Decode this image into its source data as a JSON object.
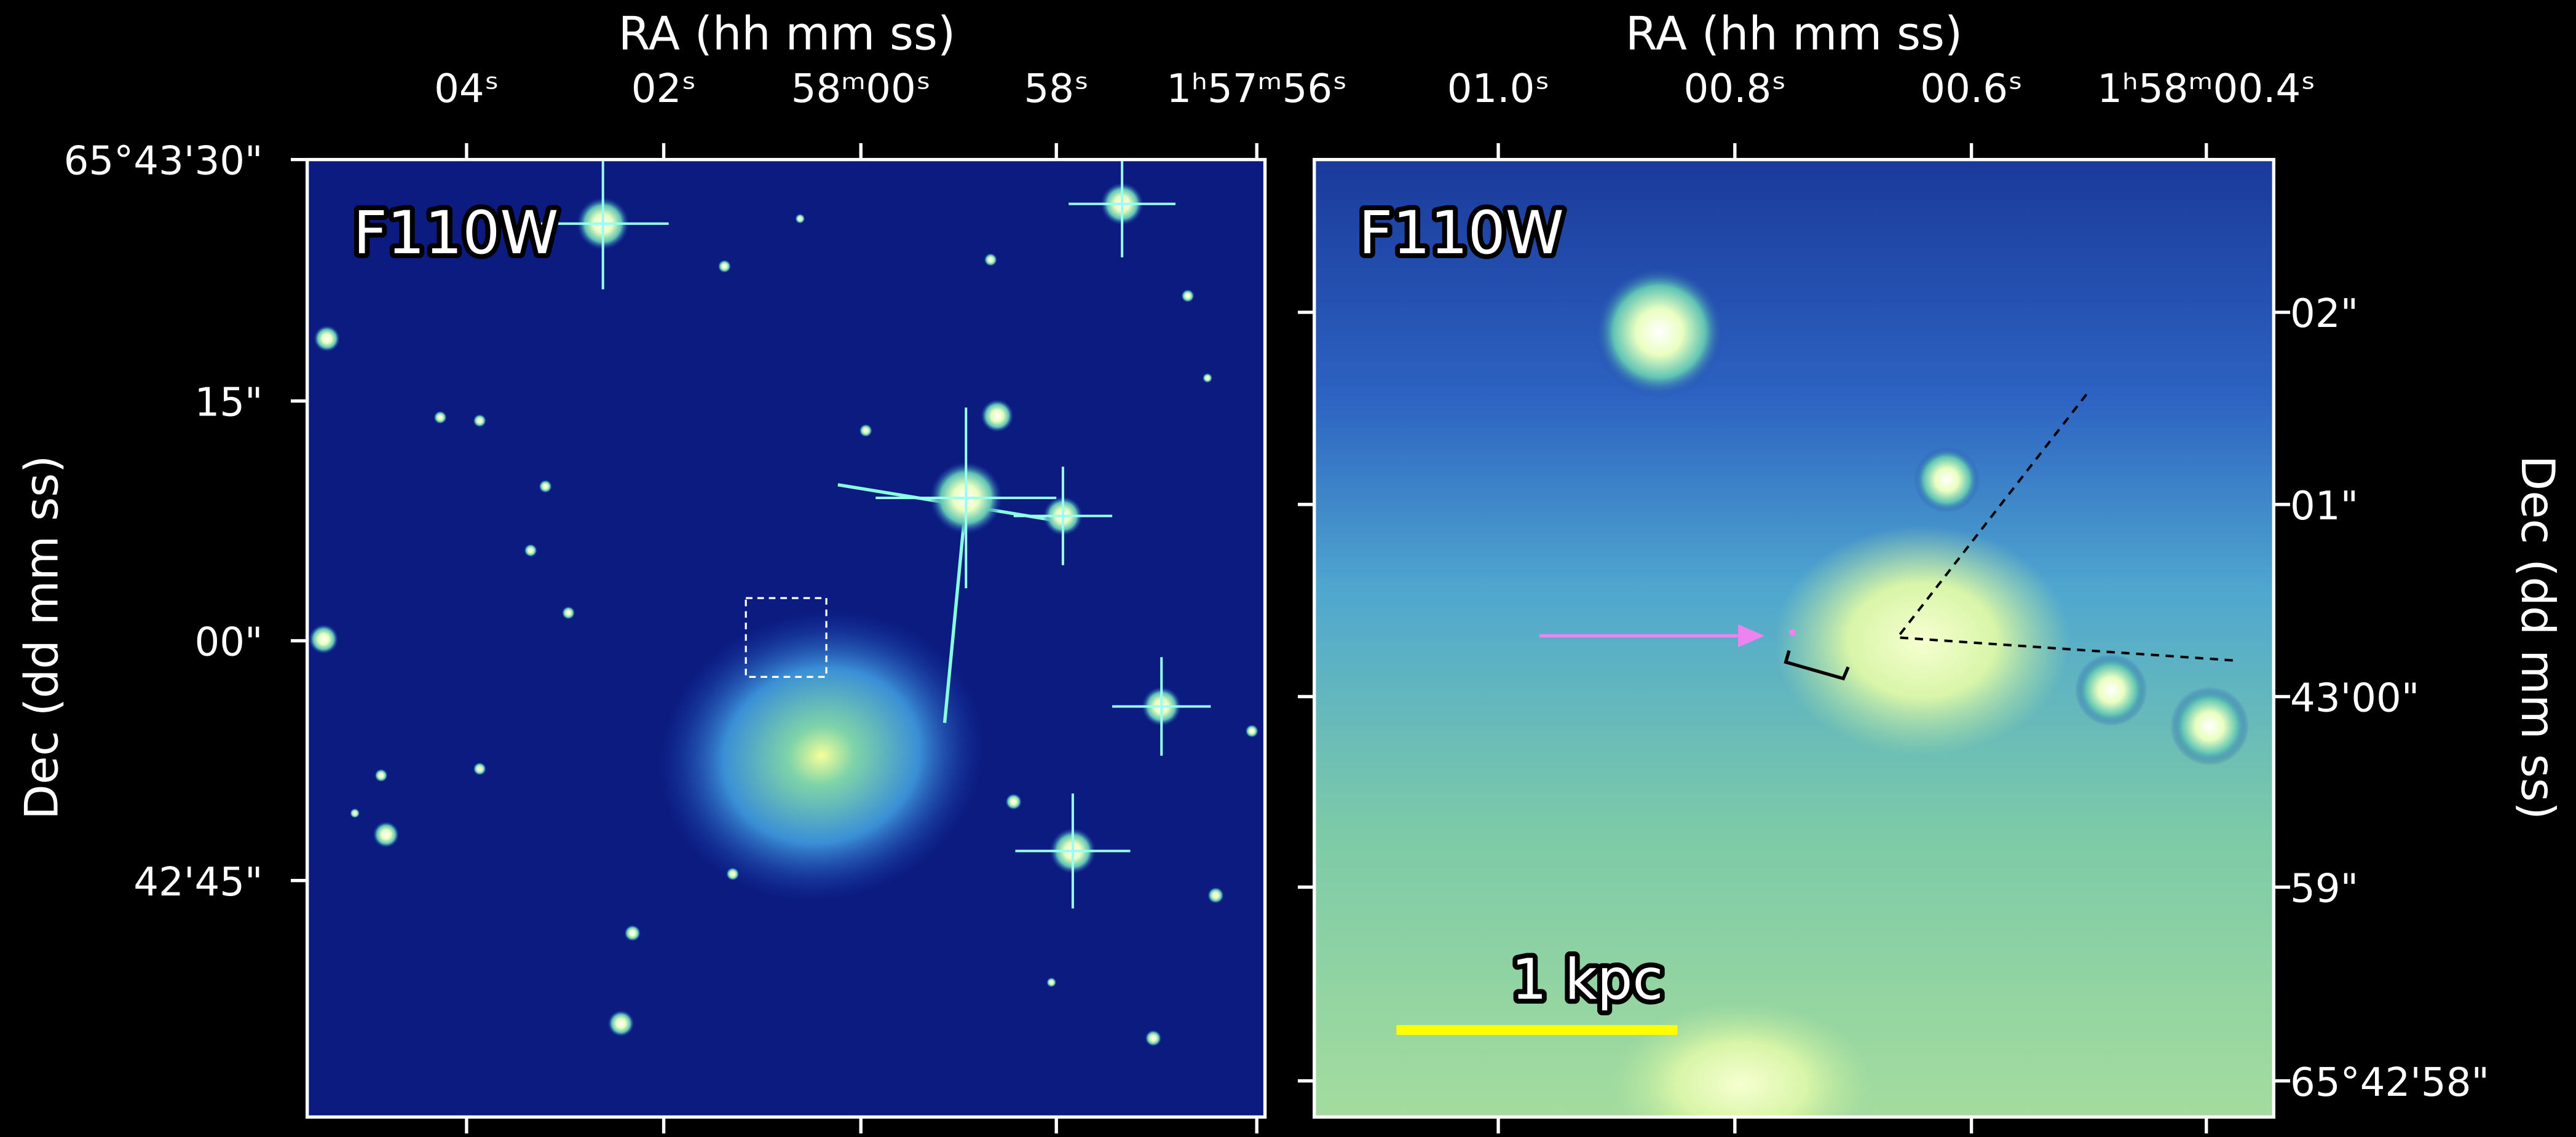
{
  "left_panel": {
    "filter_label": "F110W",
    "x_axis_label": "RA (hh mm ss)",
    "y_axis_label": "Dec (dd mm ss)",
    "x_ticks": [
      "04ˢ",
      "02ˢ",
      "58ᵐ00ˢ",
      "58ˢ",
      "1ʰ57ᵐ56ˢ"
    ],
    "y_ticks": [
      "65°43'30\"",
      "15\"",
      "00\"",
      "42'45\""
    ]
  },
  "right_panel": {
    "filter_label": "F110W",
    "x_axis_label": "RA (hh mm ss)",
    "y_axis_label": "Dec (dd mm ss)",
    "x_ticks": [
      "01.0ˢ",
      "00.8ˢ",
      "00.6ˢ",
      "1ʰ58ᵐ00.4ˢ"
    ],
    "y_ticks": [
      "02\"",
      "01\"",
      "43'00\"",
      "59\"",
      "65°42'58\""
    ],
    "scale_bar_label": "1 kpc"
  }
}
